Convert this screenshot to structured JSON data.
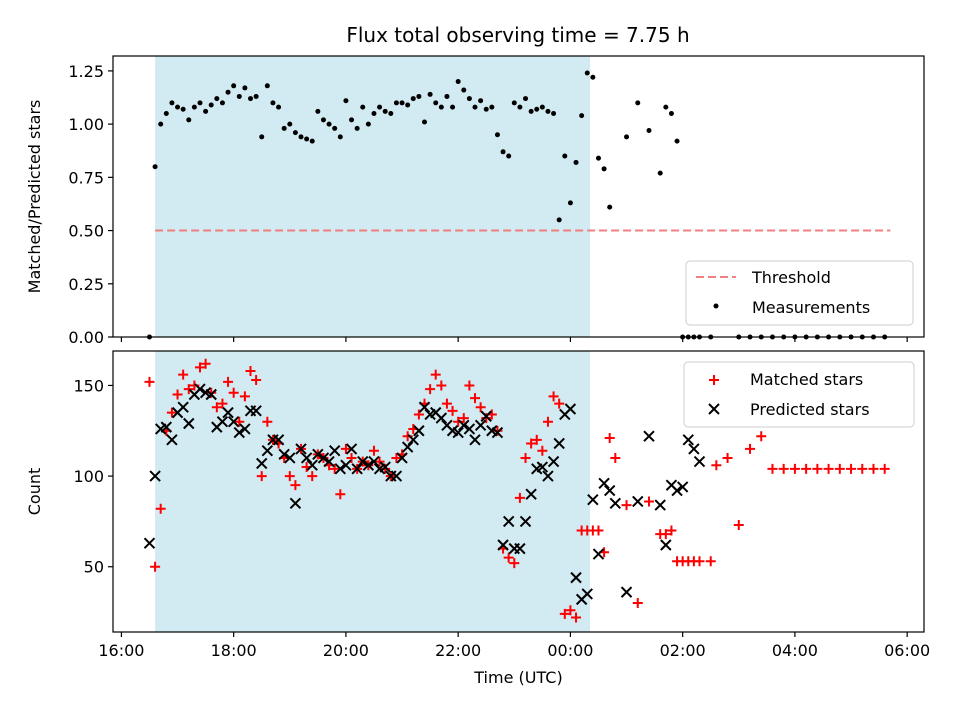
{
  "title": "Flux total observing time = 7.75 h",
  "colors": {
    "shade": "#add8e6",
    "threshold": "#f08080",
    "matched": "#ff0000",
    "predicted": "#000000",
    "measurement": "#000000"
  },
  "chart_data": [
    {
      "type": "scatter",
      "panel": "ratio",
      "ylabel": "Matched/Predicted stars",
      "ylim": [
        0,
        1.32
      ],
      "yticks": [
        0.0,
        0.25,
        0.5,
        0.75,
        1.0,
        1.25
      ],
      "ytick_labels": [
        "0.00",
        "0.25",
        "0.50",
        "0.75",
        "1.00",
        "1.25"
      ],
      "xlim": [
        15.85,
        30.3
      ],
      "shaded_span": [
        16.6,
        24.35
      ],
      "threshold": {
        "label": "Threshold",
        "value": 0.5,
        "x": [
          16.6,
          29.7
        ]
      },
      "legend": {
        "placement": "lower right",
        "entries": [
          "Threshold",
          "Measurements"
        ]
      },
      "series": [
        {
          "name": "Measurements",
          "x": [
            16.5,
            16.6,
            16.7,
            16.8,
            16.9,
            17.0,
            17.1,
            17.2,
            17.3,
            17.4,
            17.5,
            17.6,
            17.7,
            17.8,
            17.9,
            18.0,
            18.1,
            18.2,
            18.3,
            18.4,
            18.5,
            18.6,
            18.7,
            18.8,
            18.9,
            19.0,
            19.1,
            19.2,
            19.3,
            19.4,
            19.5,
            19.6,
            19.7,
            19.8,
            19.9,
            20.0,
            20.1,
            20.2,
            20.3,
            20.4,
            20.5,
            20.6,
            20.7,
            20.8,
            20.9,
            21.0,
            21.1,
            21.2,
            21.3,
            21.4,
            21.5,
            21.6,
            21.7,
            21.8,
            21.9,
            22.0,
            22.1,
            22.2,
            22.3,
            22.4,
            22.5,
            22.6,
            22.7,
            22.8,
            22.9,
            23.0,
            23.1,
            23.2,
            23.3,
            23.4,
            23.5,
            23.6,
            23.7,
            23.8,
            23.9,
            24.0,
            24.1,
            24.2,
            24.3,
            24.4,
            24.5,
            24.6,
            24.7,
            25.0,
            25.2,
            25.4,
            25.6,
            25.7,
            25.8,
            25.9,
            26.0,
            26.1,
            26.2,
            26.3,
            26.5,
            27.0,
            27.2,
            27.4,
            27.6,
            27.8,
            28.0,
            28.2,
            28.4,
            28.6,
            28.8,
            29.0,
            29.2,
            29.4,
            29.6
          ],
          "y": [
            0.0,
            0.8,
            1.0,
            1.05,
            1.1,
            1.08,
            1.07,
            1.02,
            1.08,
            1.1,
            1.06,
            1.09,
            1.12,
            1.1,
            1.15,
            1.18,
            1.13,
            1.17,
            1.12,
            1.13,
            0.94,
            1.18,
            1.1,
            1.08,
            0.98,
            1.0,
            0.96,
            0.94,
            0.93,
            0.92,
            1.06,
            1.02,
            1.0,
            0.98,
            0.94,
            1.11,
            1.02,
            0.98,
            1.08,
            1.0,
            1.05,
            1.08,
            1.06,
            1.05,
            1.1,
            1.1,
            1.09,
            1.12,
            1.13,
            1.01,
            1.14,
            1.1,
            1.08,
            1.13,
            1.08,
            1.2,
            1.16,
            1.12,
            1.08,
            1.11,
            1.07,
            1.08,
            0.95,
            0.87,
            0.85,
            1.1,
            1.08,
            1.12,
            1.06,
            1.07,
            1.08,
            1.06,
            1.05,
            0.55,
            0.85,
            0.63,
            0.82,
            1.04,
            1.24,
            1.22,
            0.84,
            0.79,
            0.61,
            0.94,
            1.1,
            0.97,
            0.77,
            1.08,
            1.05,
            0.92,
            0.0,
            0.0,
            0.0,
            0.0,
            0.0,
            0.0,
            0.0,
            0.0,
            0.0,
            0.0,
            0.0,
            0.0,
            0.0,
            0.0,
            0.0,
            0.0,
            0.0,
            0.0,
            0.0
          ]
        }
      ]
    },
    {
      "type": "scatter",
      "panel": "count",
      "title": "",
      "ylabel": "Count",
      "xlabel": "Time (UTC)",
      "ylim": [
        14,
        169
      ],
      "yticks": [
        50,
        100,
        150
      ],
      "ytick_labels": [
        "50",
        "100",
        "150"
      ],
      "xlim": [
        15.85,
        30.3
      ],
      "xticks": [
        16,
        18,
        20,
        22,
        24,
        26,
        28,
        30
      ],
      "xtick_labels": [
        "16:00",
        "18:00",
        "20:00",
        "22:00",
        "00:00",
        "02:00",
        "04:00",
        "06:00"
      ],
      "shaded_span": [
        16.6,
        24.35
      ],
      "legend": {
        "placement": "upper right",
        "entries": [
          "Matched stars",
          "Predicted stars"
        ]
      },
      "series": [
        {
          "name": "Matched stars",
          "x": [
            16.5,
            16.6,
            16.7,
            16.8,
            16.9,
            17.0,
            17.1,
            17.2,
            17.3,
            17.4,
            17.5,
            17.6,
            17.7,
            17.8,
            17.9,
            18.0,
            18.1,
            18.2,
            18.3,
            18.4,
            18.5,
            18.6,
            18.7,
            18.8,
            18.9,
            19.0,
            19.1,
            19.2,
            19.3,
            19.4,
            19.5,
            19.6,
            19.7,
            19.8,
            19.9,
            20.0,
            20.1,
            20.2,
            20.3,
            20.4,
            20.5,
            20.6,
            20.7,
            20.8,
            20.9,
            21.0,
            21.1,
            21.2,
            21.3,
            21.4,
            21.5,
            21.6,
            21.7,
            21.8,
            21.9,
            22.0,
            22.1,
            22.2,
            22.3,
            22.4,
            22.5,
            22.6,
            22.7,
            22.8,
            22.9,
            23.0,
            23.1,
            23.2,
            23.3,
            23.4,
            23.5,
            23.6,
            23.7,
            23.8,
            23.9,
            24.0,
            24.1,
            24.2,
            24.3,
            24.4,
            24.5,
            24.6,
            24.7,
            24.8,
            25.0,
            25.2,
            25.4,
            25.6,
            25.7,
            25.8,
            25.9,
            26.0,
            26.1,
            26.2,
            26.3,
            26.5,
            26.6,
            26.8,
            27.0,
            27.2,
            27.4,
            27.6,
            27.8,
            28.0,
            28.2,
            28.4,
            28.6,
            28.8,
            29.0,
            29.2,
            29.4,
            29.6
          ],
          "y": [
            152,
            50,
            82,
            125,
            135,
            145,
            156,
            148,
            150,
            160,
            162,
            146,
            138,
            140,
            152,
            146,
            130,
            144,
            158,
            153,
            100,
            130,
            120,
            118,
            110,
            100,
            95,
            115,
            105,
            100,
            112,
            110,
            106,
            104,
            90,
            115,
            110,
            104,
            108,
            106,
            114,
            108,
            104,
            100,
            110,
            112,
            122,
            126,
            134,
            140,
            148,
            156,
            150,
            140,
            136,
            130,
            132,
            150,
            143,
            138,
            132,
            134,
            125,
            60,
            55,
            52,
            88,
            110,
            118,
            120,
            114,
            130,
            144,
            140,
            24,
            26,
            22,
            70,
            70,
            70,
            70,
            58,
            121,
            110,
            84,
            30,
            86,
            68,
            68,
            70,
            53,
            53,
            53,
            53,
            53,
            53,
            106,
            110,
            73,
            115,
            122,
            104,
            104,
            104,
            104,
            104,
            104,
            104,
            104,
            104,
            104,
            104
          ]
        },
        {
          "name": "Predicted stars",
          "x": [
            16.5,
            16.6,
            16.7,
            16.8,
            16.9,
            17.0,
            17.1,
            17.2,
            17.3,
            17.4,
            17.5,
            17.6,
            17.7,
            17.8,
            17.9,
            18.0,
            18.1,
            18.2,
            18.3,
            18.4,
            18.5,
            18.6,
            18.7,
            18.8,
            18.9,
            19.0,
            19.1,
            19.2,
            19.3,
            19.4,
            19.5,
            19.6,
            19.7,
            19.8,
            19.9,
            20.0,
            20.1,
            20.2,
            20.3,
            20.4,
            20.5,
            20.6,
            20.7,
            20.8,
            20.9,
            21.0,
            21.1,
            21.2,
            21.3,
            21.4,
            21.5,
            21.6,
            21.7,
            21.8,
            21.9,
            22.0,
            22.1,
            22.2,
            22.3,
            22.4,
            22.5,
            22.6,
            22.7,
            22.8,
            22.9,
            23.0,
            23.1,
            23.2,
            23.3,
            23.4,
            23.5,
            23.6,
            23.7,
            23.8,
            23.9,
            24.0,
            24.1,
            24.2,
            24.3,
            24.4,
            24.5,
            24.6,
            24.7,
            24.8,
            25.0,
            25.2,
            25.4,
            25.6,
            25.7,
            25.8,
            25.9,
            26.0,
            26.1,
            26.2,
            26.3
          ],
          "y": [
            63,
            100,
            126,
            127,
            120,
            135,
            138,
            129,
            145,
            148,
            146,
            145,
            127,
            130,
            135,
            130,
            124,
            126,
            136,
            136,
            107,
            114,
            120,
            120,
            112,
            110,
            85,
            115,
            110,
            106,
            112,
            110,
            108,
            114,
            104,
            106,
            115,
            104,
            108,
            106,
            108,
            104,
            105,
            100,
            100,
            110,
            116,
            120,
            125,
            138,
            134,
            135,
            132,
            128,
            125,
            124,
            128,
            126,
            120,
            128,
            133,
            125,
            124,
            62,
            75,
            60,
            60,
            75,
            90,
            104,
            105,
            100,
            108,
            118,
            134,
            137,
            44,
            32,
            35,
            87,
            57,
            96,
            92,
            85,
            36,
            86,
            122,
            84,
            62,
            95,
            92,
            94,
            120,
            115,
            108
          ]
        }
      ]
    }
  ]
}
